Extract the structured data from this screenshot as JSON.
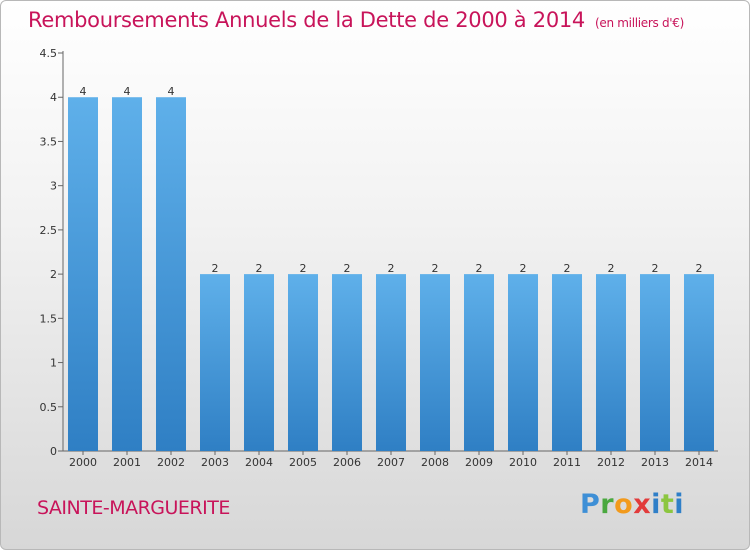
{
  "title": "Remboursements Annuels de la Dette de 2000 à 2014",
  "unit_note": "(en milliers d'€)",
  "commune": "SAINTE-MARGUERITE",
  "logo_text": "Proxiti",
  "colors": {
    "title": "#c8145a",
    "bar_top": "#5fb0ea",
    "bar_bottom": "#2f7fc4"
  },
  "chart_data": {
    "type": "bar",
    "categories": [
      "2000",
      "2001",
      "2002",
      "2003",
      "2004",
      "2005",
      "2006",
      "2007",
      "2008",
      "2009",
      "2010",
      "2011",
      "2012",
      "2013",
      "2014"
    ],
    "values": [
      4,
      4,
      4,
      2,
      2,
      2,
      2,
      2,
      2,
      2,
      2,
      2,
      2,
      2,
      2
    ],
    "value_labels": [
      "4",
      "4",
      "4",
      "2",
      "2",
      "2",
      "2",
      "2",
      "2",
      "2",
      "2",
      "2",
      "2",
      "2",
      "2"
    ],
    "yticks": [
      0,
      0.5,
      1,
      1.5,
      2,
      2.5,
      3,
      3.5,
      4,
      4.5
    ],
    "ytick_labels": [
      "0",
      "0.5",
      "1",
      "1.5",
      "2",
      "2.5",
      "3",
      "3.5",
      "4",
      "4.5"
    ],
    "ylim": [
      0,
      4.5
    ],
    "xlabel": "",
    "ylabel": "",
    "grid": false,
    "legend": false
  }
}
